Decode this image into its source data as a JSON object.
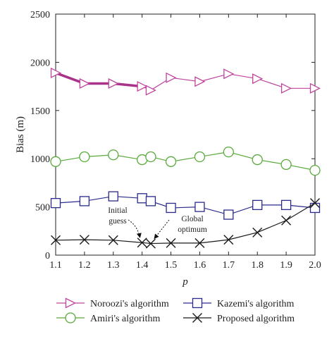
{
  "chart_data": {
    "type": "line",
    "title": "",
    "xlabel": "p",
    "ylabel": "Bias (m)",
    "xlim": [
      1.1,
      2.0
    ],
    "ylim": [
      0,
      2500
    ],
    "xticks": [
      "1.1",
      "1.2",
      "1.3",
      "1.4",
      "1.5",
      "1.6",
      "1.7",
      "1.8",
      "1.9",
      "2.0"
    ],
    "yticks": [
      "0",
      "500",
      "1000",
      "1500",
      "2000",
      "2500"
    ],
    "grid": false,
    "legend_placement": "bottom",
    "series": [
      {
        "name": "Noroozi's algorithm",
        "color": "#c0449e",
        "marker": "triangle-right",
        "x": [
          1.1,
          1.2,
          1.3,
          1.4,
          1.43,
          1.5,
          1.6,
          1.7,
          1.8,
          1.9,
          2.0
        ],
        "values": [
          1890,
          1780,
          1780,
          1750,
          1710,
          1840,
          1800,
          1880,
          1830,
          1730,
          1730
        ]
      },
      {
        "name": "Amiri's algorithm",
        "color": "#5aaa3c",
        "marker": "circle",
        "x": [
          1.1,
          1.2,
          1.3,
          1.4,
          1.43,
          1.5,
          1.6,
          1.7,
          1.8,
          1.9,
          2.0
        ],
        "values": [
          970,
          1020,
          1040,
          990,
          1020,
          970,
          1020,
          1070,
          990,
          940,
          880
        ]
      },
      {
        "name": "Kazemi's algorithm",
        "color": "#2a2a8c",
        "marker": "square",
        "x": [
          1.1,
          1.2,
          1.3,
          1.4,
          1.43,
          1.5,
          1.6,
          1.7,
          1.8,
          1.9,
          2.0
        ],
        "values": [
          540,
          560,
          610,
          590,
          560,
          490,
          500,
          420,
          520,
          520,
          490
        ]
      },
      {
        "name": "Proposed algorithm",
        "color": "#1a1a1a",
        "marker": "x",
        "x": [
          1.1,
          1.2,
          1.3,
          1.4,
          1.43,
          1.5,
          1.6,
          1.7,
          1.8,
          1.9,
          2.0
        ],
        "values": [
          155,
          160,
          155,
          130,
          120,
          125,
          125,
          160,
          235,
          360,
          540
        ]
      }
    ],
    "highlight_segment": {
      "series": "Noroozi's algorithm",
      "color": "#a8328a",
      "x": [
        1.1,
        1.2,
        1.3,
        1.4
      ],
      "values": [
        1890,
        1780,
        1780,
        1750
      ]
    },
    "annotations": [
      {
        "lines": [
          "Initial",
          "guess"
        ],
        "x": 1.4,
        "y": 130
      },
      {
        "lines": [
          "Global",
          "optimum"
        ],
        "x": 1.43,
        "y": 120
      }
    ]
  }
}
